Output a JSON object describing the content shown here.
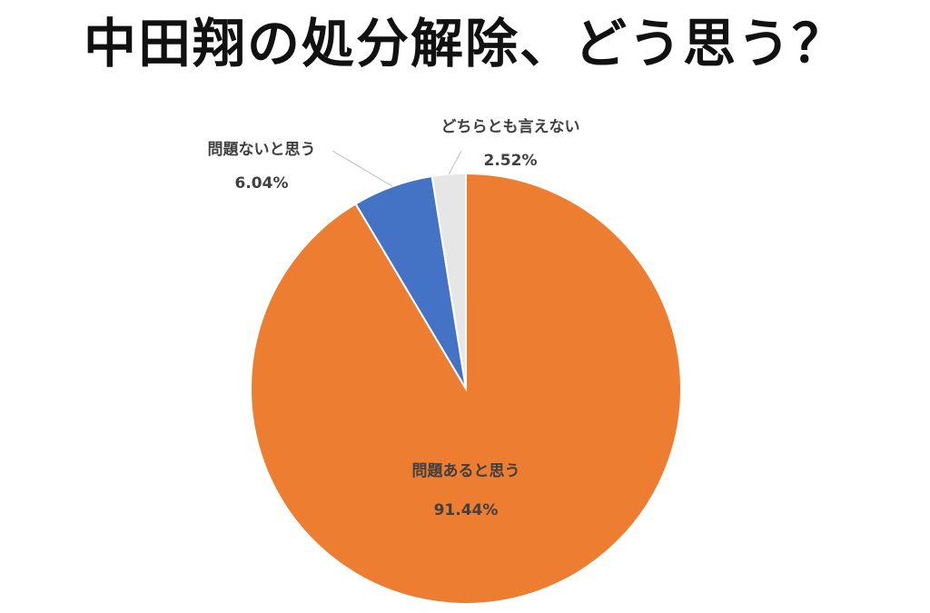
{
  "chart_data": {
    "type": "pie",
    "title": "中田翔の処分解除、どう思う？",
    "slices": [
      {
        "label": "問題あると思う",
        "value": 91.44,
        "value_label": "91.44%",
        "color": "#ED7D31"
      },
      {
        "label": "問題ないと思う",
        "value": 6.04,
        "value_label": "6.04%",
        "color": "#4472C4"
      },
      {
        "label": "どちらとも言えない",
        "value": 2.52,
        "value_label": "2.52%",
        "color": "#E7E6E6"
      }
    ],
    "start_angle_deg": 0,
    "direction": "clockwise",
    "legend": "none"
  }
}
